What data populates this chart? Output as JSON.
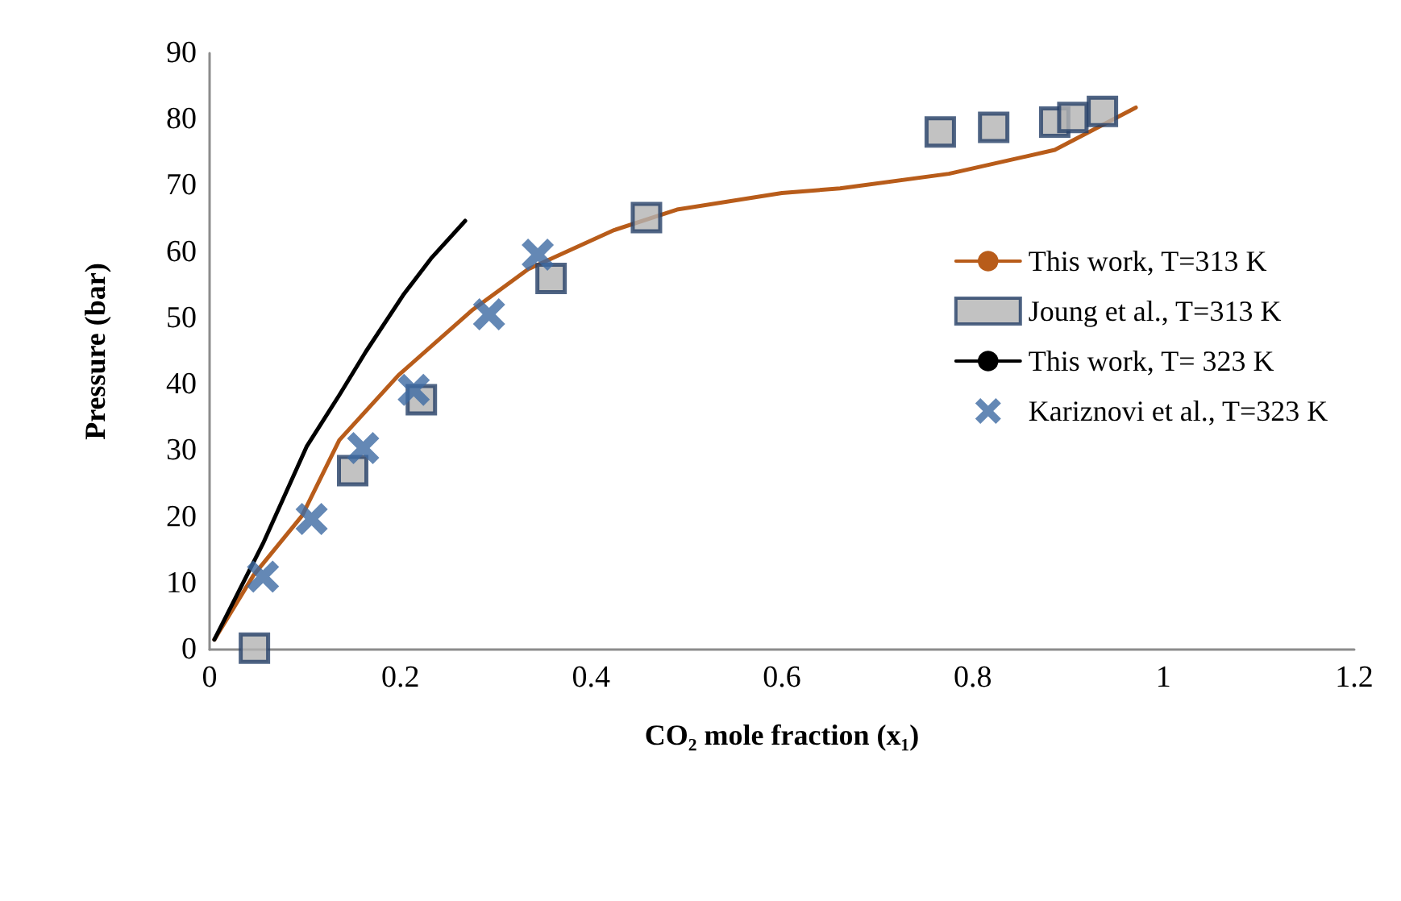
{
  "chart_data": {
    "type": "line",
    "xlabel": "CO₂ mole fraction (x₁)",
    "ylabel": "Pressure (bar)",
    "xlim": [
      0,
      1.2
    ],
    "xticks": [
      0,
      0.2,
      0.4,
      0.6,
      0.8,
      1,
      1.2
    ],
    "ylim": [
      0,
      90
    ],
    "yticks": [
      0,
      10,
      20,
      30,
      40,
      50,
      60,
      70,
      80,
      90
    ],
    "grid": false,
    "legend": "right",
    "series": [
      {
        "name": "This work, T=313 K",
        "type": "line",
        "marker": "none",
        "color": "#b85c1a",
        "x": [
          0.005,
          0.046,
          0.097,
          0.136,
          0.198,
          0.276,
          0.334,
          0.424,
          0.49,
          0.6,
          0.661,
          0.775,
          0.886,
          0.971
        ],
        "values": [
          1.5,
          11.2,
          20.2,
          31.6,
          41.4,
          51.3,
          57.4,
          63.3,
          66.4,
          68.9,
          69.6,
          71.8,
          75.4,
          81.8
        ]
      },
      {
        "name": "Joung et al., T=313 K",
        "type": "scatter",
        "marker": "square",
        "color": "#b3b3b3",
        "x": [
          0.047,
          0.15,
          0.222,
          0.358,
          0.458,
          0.766,
          0.822,
          0.886,
          0.905,
          0.936
        ],
        "values": [
          0.2,
          27,
          37.7,
          56,
          65.2,
          78.1,
          78.8,
          79.6,
          80.3,
          81.2
        ]
      },
      {
        "name": "This work, T= 323 K",
        "type": "line",
        "marker": "none",
        "color": "#000000",
        "x": [
          0.005,
          0.056,
          0.102,
          0.136,
          0.164,
          0.203,
          0.232,
          0.268
        ],
        "values": [
          1.5,
          16,
          30.7,
          38.4,
          45,
          53.5,
          59,
          64.7
        ]
      },
      {
        "name": "Kariznovi et al., T=323 K",
        "type": "scatter",
        "marker": "cross",
        "color": "#3d6aa3",
        "x": [
          0.056,
          0.107,
          0.161,
          0.214,
          0.293,
          0.344
        ],
        "values": [
          11,
          19.7,
          30.4,
          39.2,
          50.6,
          59.6
        ]
      }
    ]
  }
}
